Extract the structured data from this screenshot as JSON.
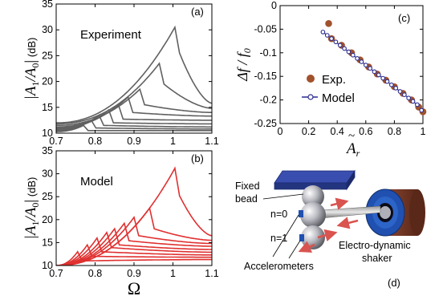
{
  "chart_data": [
    {
      "type": "line",
      "panel_label": "(a)",
      "annotation": "Experiment",
      "ylabel": "|A1/A0| (dB)",
      "ylabel_main": "|A",
      "ylabel_sub1": "1",
      "ylabel_mid": "/A",
      "ylabel_sub0": "0",
      "ylabel_bar": "|",
      "ylabel_unit": "(dB)",
      "xlim": [
        0.7,
        1.1
      ],
      "ylim": [
        10,
        35
      ],
      "xticks": [
        "0.7",
        "0.8",
        "0.9",
        "1",
        "1.1"
      ],
      "yticks": [
        "10",
        "15",
        "20",
        "25",
        "30",
        "35"
      ],
      "line_color": "#606060",
      "series": [
        {
          "peak_x": 0.77,
          "peak_y": 11.5,
          "start_y": 10.3,
          "end_y": 10.5,
          "drop": 1.0
        },
        {
          "peak_x": 0.79,
          "peak_y": 12.5,
          "start_y": 10.5,
          "end_y": 10.8,
          "drop": 1.5
        },
        {
          "peak_x": 0.81,
          "peak_y": 13.5,
          "start_y": 10.6,
          "end_y": 11.2,
          "drop": 2.0
        },
        {
          "peak_x": 0.835,
          "peak_y": 14.5,
          "start_y": 10.8,
          "end_y": 11.8,
          "drop": 2.5
        },
        {
          "peak_x": 0.86,
          "peak_y": 15.5,
          "start_y": 11.0,
          "end_y": 12.5,
          "drop": 2.8
        },
        {
          "peak_x": 0.885,
          "peak_y": 17.0,
          "start_y": 11.2,
          "end_y": 13.3,
          "drop": 3.0
        },
        {
          "peak_x": 0.915,
          "peak_y": 18.5,
          "start_y": 11.5,
          "end_y": 14.0,
          "drop": 3.0
        },
        {
          "peak_x": 0.965,
          "peak_y": 23.5,
          "start_y": 11.8,
          "end_y": 14.8,
          "drop": 4.0
        },
        {
          "peak_x": 1.005,
          "peak_y": 30.5,
          "start_y": 12.0,
          "end_y": 15.8,
          "drop": 5.0
        }
      ]
    },
    {
      "type": "line",
      "panel_label": "(b)",
      "annotation": "Model",
      "ylabel": "|A1/A0| (dB)",
      "ylabel_main": "|A",
      "ylabel_sub1": "1",
      "ylabel_mid": "/A",
      "ylabel_sub0": "0",
      "ylabel_bar": "|",
      "ylabel_unit": "(dB)",
      "xlabel": "Ω",
      "xlim": [
        0.7,
        1.1
      ],
      "ylim": [
        10,
        35
      ],
      "xticks": [
        "0.7",
        "0.8",
        "0.9",
        "1",
        "1.1"
      ],
      "yticks": [
        "10",
        "15",
        "20",
        "25",
        "30",
        "35"
      ],
      "line_color": "#e03030",
      "series": [
        {
          "peak_x": 0.755,
          "peak_y": 13.0,
          "start_y": 10.0,
          "end_y": 11.3,
          "drop": 2.0
        },
        {
          "peak_x": 0.78,
          "peak_y": 14.5,
          "start_y": 10.0,
          "end_y": 11.8,
          "drop": 2.5
        },
        {
          "peak_x": 0.805,
          "peak_y": 16.0,
          "start_y": 10.0,
          "end_y": 12.3,
          "drop": 3.0
        },
        {
          "peak_x": 0.83,
          "peak_y": 17.2,
          "start_y": 10.0,
          "end_y": 12.9,
          "drop": 3.3
        },
        {
          "peak_x": 0.85,
          "peak_y": 18.0,
          "start_y": 10.0,
          "end_y": 13.5,
          "drop": 3.5
        },
        {
          "peak_x": 0.875,
          "peak_y": 19.2,
          "start_y": 10.0,
          "end_y": 14.2,
          "drop": 3.8
        },
        {
          "peak_x": 0.9,
          "peak_y": 20.5,
          "start_y": 10.0,
          "end_y": 14.8,
          "drop": 4.0
        },
        {
          "peak_x": 0.94,
          "peak_y": 22.5,
          "start_y": 10.0,
          "end_y": 15.5,
          "drop": 4.5
        },
        {
          "peak_x": 1.005,
          "peak_y": 31.2,
          "start_y": 10.0,
          "end_y": 16.5,
          "drop": 6.0
        }
      ]
    },
    {
      "type": "scatter",
      "panel_label": "(c)",
      "ylabel": "Δf/f0",
      "ylabel_main": "Δf / f",
      "ylabel_sub": "0",
      "xlabel": "Ãr",
      "xlabel_main": "A",
      "xlabel_tilde": "~",
      "xlabel_sub": "r",
      "xlim": [
        0,
        1
      ],
      "ylim": [
        -0.25,
        0
      ],
      "xticks": [
        "0",
        "0.2",
        "0.4",
        "0.6",
        "0.8",
        "1"
      ],
      "yticks": [
        "0",
        "-0.05",
        "-0.1",
        "-0.15",
        "-0.2",
        "-0.25"
      ],
      "legend_position": "center-left",
      "series": [
        {
          "name": "Exp.",
          "color": "#a0522d",
          "marker": "filled-circle",
          "x": [
            0.34,
            0.36,
            0.43,
            0.5,
            0.56,
            0.62,
            0.68,
            0.74,
            0.8,
            0.86,
            0.92,
            0.97,
            1.0
          ],
          "y": [
            -0.038,
            -0.07,
            -0.084,
            -0.1,
            -0.115,
            -0.13,
            -0.145,
            -0.158,
            -0.172,
            -0.186,
            -0.2,
            -0.215,
            -0.225
          ]
        },
        {
          "name": "Model",
          "color": "#2a2a90",
          "marker": "open-circle-line",
          "x": [
            0.3,
            0.33,
            0.36,
            0.39,
            0.42,
            0.45,
            0.48,
            0.51,
            0.54,
            0.57,
            0.6,
            0.63,
            0.66,
            0.69,
            0.72,
            0.75,
            0.78,
            0.81,
            0.84,
            0.87,
            0.9,
            0.93,
            0.96,
            0.99
          ],
          "y": [
            -0.056,
            -0.063,
            -0.07,
            -0.077,
            -0.084,
            -0.091,
            -0.098,
            -0.105,
            -0.112,
            -0.119,
            -0.126,
            -0.133,
            -0.14,
            -0.147,
            -0.154,
            -0.161,
            -0.168,
            -0.175,
            -0.182,
            -0.189,
            -0.196,
            -0.203,
            -0.21,
            -0.222
          ]
        }
      ]
    }
  ],
  "diagram": {
    "panel_label": "(d)",
    "labels": {
      "fixed_bead_1": "Fixed",
      "fixed_bead_2": "bead",
      "n0": "n=0",
      "n1": "n=1",
      "accelerometers": "Accelerometers",
      "shaker_1": "Electro-dynamic",
      "shaker_2": "shaker"
    },
    "colors": {
      "block": "#2b3d9a",
      "bead": "#b0b0b8",
      "arrow": "#d9534f",
      "shaker_ring": "#2050b0",
      "shaker_body": "#7a3a2a"
    }
  }
}
